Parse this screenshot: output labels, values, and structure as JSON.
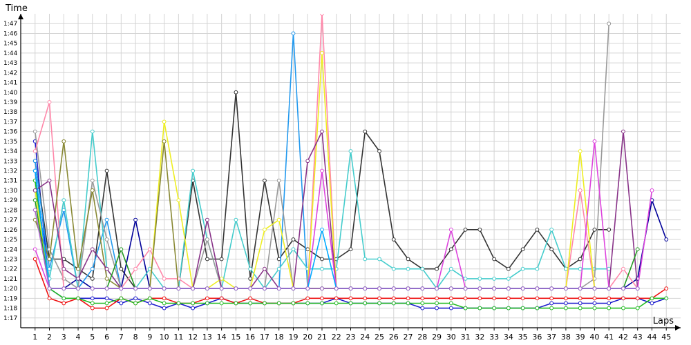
{
  "chart_data": {
    "type": "line",
    "xlabel": "Laps",
    "ylabel": "Time",
    "x": [
      1,
      2,
      3,
      4,
      5,
      6,
      7,
      8,
      9,
      10,
      11,
      12,
      13,
      14,
      15,
      16,
      17,
      18,
      19,
      20,
      21,
      22,
      23,
      24,
      25,
      26,
      27,
      28,
      29,
      30,
      31,
      32,
      33,
      34,
      35,
      36,
      37,
      38,
      39,
      40,
      41,
      42,
      43,
      44,
      45
    ],
    "x_ticks": [
      "1",
      "2",
      "3",
      "4",
      "5",
      "6",
      "7",
      "8",
      "9",
      "10",
      "11",
      "12",
      "13",
      "14",
      "15",
      "16",
      "17",
      "18",
      "19",
      "20",
      "21",
      "22",
      "23",
      "24",
      "25",
      "26",
      "27",
      "28",
      "29",
      "30",
      "31",
      "32",
      "33",
      "34",
      "35",
      "36",
      "37",
      "38",
      "39",
      "40",
      "41",
      "42",
      "43",
      "44",
      "45"
    ],
    "y_ticks": [
      "1:17",
      "1:18",
      "1:19",
      "1:20",
      "1:21",
      "1:22",
      "1:23",
      "1:24",
      "1:25",
      "1:26",
      "1:27",
      "1:28",
      "1:29",
      "1:30",
      "1:31",
      "1:32",
      "1:33",
      "1:34",
      "1:35",
      "1:36",
      "1:37",
      "1:38",
      "1:39",
      "1:40",
      "1:41",
      "1:42",
      "1:43",
      "1:44",
      "1:45",
      "1:46",
      "1:47"
    ],
    "y_unit": "seconds",
    "ylim": [
      76,
      108
    ],
    "xlim": [
      0,
      46
    ],
    "grid": true,
    "legend": "none",
    "series": [
      {
        "color": "#1a1acc",
        "values": [
          95,
          80,
          79,
          79,
          79,
          79,
          78.5,
          79,
          78.5,
          78,
          78.5,
          78,
          78.5,
          79,
          78.5,
          78.5,
          78.5,
          78.5,
          78.5,
          78.5,
          78.5,
          79,
          78.5,
          78.5,
          78.5,
          78.5,
          78.5,
          78,
          78,
          78,
          78,
          78,
          78,
          78,
          78,
          78,
          78.5,
          78.5,
          78.5,
          78.5,
          78.5,
          79,
          79,
          78.5,
          79
        ]
      },
      {
        "color": "#ee1111",
        "values": [
          83,
          79,
          78.5,
          79,
          78,
          78,
          79,
          78.5,
          79,
          79,
          78.5,
          78.5,
          79,
          79,
          78.5,
          79,
          78.5,
          78.5,
          78.5,
          79,
          79,
          79,
          79,
          79,
          79,
          79,
          79,
          79,
          79,
          79,
          79,
          79,
          79,
          79,
          79,
          79,
          79,
          79,
          79,
          79,
          79,
          79,
          79,
          79,
          80
        ]
      },
      {
        "color": "#22bb22",
        "values": [
          91,
          80,
          79,
          79,
          78.5,
          78.5,
          79,
          78.5,
          79,
          78.5,
          78.5,
          78.5,
          78.5,
          78.5,
          78.5,
          78.5,
          78.5,
          78.5,
          78.5,
          78.5,
          78.5,
          78.5,
          78.5,
          78.5,
          78.5,
          78.5,
          78.5,
          78.5,
          78.5,
          78.5,
          78,
          78,
          78,
          78,
          78,
          78,
          78,
          78,
          78,
          78,
          78,
          78,
          78,
          79,
          79
        ]
      },
      {
        "color": "#333333",
        "values": [
          93,
          83,
          83,
          82,
          81,
          92,
          82,
          80,
          80,
          80,
          80,
          91,
          83,
          83,
          100,
          81,
          91,
          83,
          85,
          84,
          83,
          83,
          84,
          96,
          94,
          85,
          83,
          82,
          82,
          84,
          86,
          86,
          83,
          82,
          84,
          86,
          84,
          82,
          83,
          86,
          86,
          null,
          null,
          null,
          null
        ]
      },
      {
        "color": "#000099",
        "values": [
          92,
          80,
          80,
          81,
          80,
          80,
          80,
          87,
          80,
          80,
          80,
          80,
          80,
          80,
          80,
          80,
          80,
          80,
          80,
          80,
          80,
          80,
          80,
          80,
          80,
          80,
          80,
          80,
          80,
          80,
          80,
          80,
          80,
          80,
          80,
          80,
          80,
          80,
          80,
          80,
          80,
          80,
          81,
          89,
          85
        ]
      },
      {
        "color": "#2299ee",
        "values": [
          93,
          82,
          88,
          80,
          82,
          87,
          80,
          80,
          80,
          80,
          80,
          80,
          80,
          80,
          80,
          80,
          80,
          80,
          106,
          80,
          80,
          80,
          80,
          80,
          80,
          80,
          80,
          80,
          80,
          80,
          80,
          80,
          80,
          80,
          80,
          80,
          80,
          80,
          80,
          80,
          80,
          80,
          80,
          null,
          null
        ]
      },
      {
        "color": "#44cccc",
        "values": [
          90,
          81,
          89,
          80,
          96,
          82,
          80,
          80,
          82,
          80,
          80,
          92,
          85,
          80,
          87,
          82,
          80,
          82,
          84,
          82,
          82,
          82,
          94,
          83,
          83,
          82,
          82,
          82,
          80,
          82,
          81,
          81,
          81,
          81,
          82,
          82,
          86,
          82,
          82,
          82,
          82,
          null,
          null,
          null,
          null
        ]
      },
      {
        "color": "#999999",
        "values": [
          96,
          84,
          81,
          80,
          91,
          85,
          80,
          80,
          80,
          80,
          80,
          80,
          85,
          80,
          80,
          80,
          80,
          91,
          80,
          80,
          80,
          80,
          80,
          80,
          80,
          80,
          80,
          80,
          80,
          80,
          80,
          80,
          80,
          80,
          80,
          80,
          80,
          80,
          80,
          81,
          107,
          null,
          null,
          null,
          null
        ]
      },
      {
        "color": "#ff88aa",
        "values": [
          94,
          99,
          80,
          80,
          80,
          80,
          80,
          82,
          84,
          81,
          81,
          80,
          80,
          80,
          80,
          80,
          80,
          80,
          80,
          80,
          108,
          80,
          80,
          80,
          80,
          80,
          80,
          80,
          80,
          80,
          80,
          80,
          80,
          80,
          80,
          80,
          80,
          80,
          90,
          80,
          80,
          82,
          80,
          null,
          null
        ]
      },
      {
        "color": "#eeee22",
        "values": [
          90,
          80,
          80,
          80,
          80,
          80,
          80,
          80,
          80,
          97,
          89,
          80,
          80,
          81,
          80,
          80,
          86,
          87,
          80,
          80,
          104,
          80,
          80,
          80,
          80,
          80,
          80,
          80,
          80,
          80,
          80,
          80,
          80,
          80,
          80,
          80,
          80,
          80,
          94,
          80,
          80,
          80,
          null,
          null,
          null
        ]
      },
      {
        "color": "#888833",
        "values": [
          87,
          83,
          95,
          82,
          90,
          81,
          80,
          80,
          80,
          95,
          80,
          80,
          80,
          80,
          80,
          80,
          80,
          80,
          80,
          80,
          80,
          80,
          80,
          80,
          80,
          80,
          80,
          80,
          80,
          80,
          80,
          80,
          80,
          80,
          80,
          80,
          80,
          80,
          80,
          80,
          80,
          80,
          80,
          null,
          null
        ]
      },
      {
        "color": "#883388",
        "values": [
          90,
          91,
          82,
          81,
          84,
          82,
          80,
          80,
          80,
          80,
          80,
          80,
          87,
          80,
          80,
          80,
          82,
          80,
          80,
          93,
          96,
          80,
          80,
          80,
          80,
          80,
          80,
          80,
          80,
          80,
          80,
          80,
          80,
          80,
          80,
          80,
          80,
          80,
          80,
          80,
          80,
          96,
          80,
          null,
          null
        ]
      },
      {
        "color": "#dd44dd",
        "values": [
          84,
          80,
          80,
          80,
          80,
          80,
          80,
          80,
          80,
          80,
          80,
          80,
          80,
          80,
          80,
          80,
          80,
          80,
          80,
          80,
          92,
          80,
          80,
          80,
          80,
          80,
          80,
          80,
          80,
          86,
          80,
          80,
          80,
          80,
          80,
          80,
          80,
          80,
          80,
          95,
          80,
          80,
          80,
          90,
          null
        ]
      },
      {
        "color": "#229922",
        "values": [
          89,
          80,
          80,
          80,
          80,
          80,
          84,
          80,
          80,
          80,
          80,
          80,
          80,
          80,
          80,
          80,
          80,
          80,
          80,
          80,
          80,
          80,
          80,
          80,
          80,
          80,
          80,
          80,
          80,
          80,
          80,
          80,
          80,
          80,
          80,
          80,
          80,
          80,
          80,
          80,
          80,
          80,
          84,
          null,
          null
        ]
      },
      {
        "color": "#00aaff",
        "values": [
          92,
          80,
          80,
          80,
          80,
          80,
          80,
          80,
          80,
          80,
          80,
          80,
          80,
          80,
          80,
          80,
          80,
          80,
          80,
          80,
          86,
          80,
          80,
          80,
          80,
          80,
          80,
          80,
          80,
          80,
          80,
          80,
          80,
          80,
          80,
          80,
          80,
          80,
          80,
          80,
          80,
          80,
          80,
          null,
          null
        ]
      },
      {
        "color": "#aa66cc",
        "values": [
          88,
          80,
          80,
          80,
          80,
          80,
          80,
          80,
          80,
          80,
          80,
          80,
          80,
          80,
          80,
          80,
          80,
          80,
          80,
          80,
          80,
          80,
          80,
          80,
          80,
          80,
          80,
          80,
          80,
          80,
          80,
          80,
          80,
          80,
          80,
          80,
          80,
          80,
          80,
          80,
          80,
          80,
          80,
          null,
          null
        ]
      }
    ]
  }
}
